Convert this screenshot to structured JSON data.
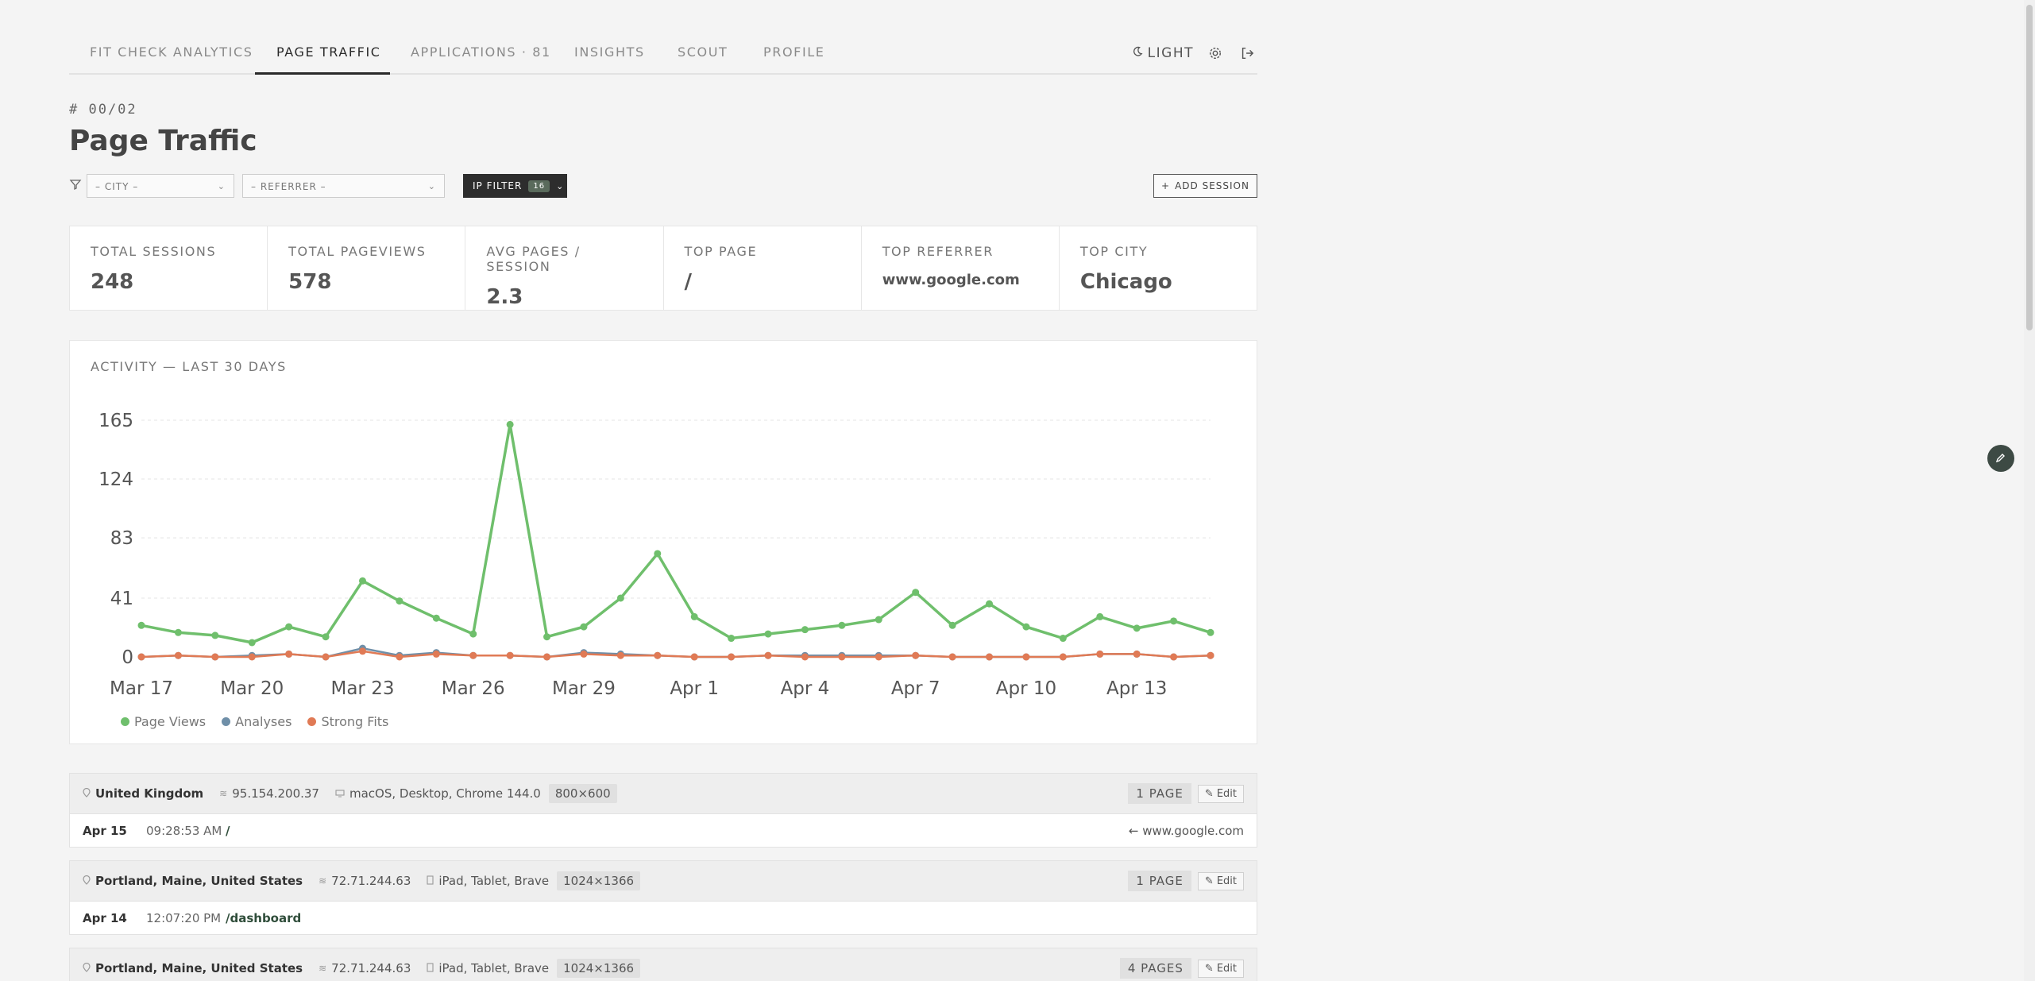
{
  "nav": {
    "tabs": [
      "FIT CHECK ANALYTICS",
      "PAGE TRAFFIC",
      "APPLICATIONS · 81",
      "INSIGHTS",
      "SCOUT",
      "PROFILE"
    ],
    "active_tab": "PAGE TRAFFIC",
    "theme_label": "LIGHT"
  },
  "page": {
    "crumb": "# 00/02",
    "title": "Page Traffic"
  },
  "filters": {
    "city_placeholder": "– CITY –",
    "referrer_placeholder": "– REFERRER –",
    "ip_filter_label": "IP FILTER",
    "ip_filter_count": "16",
    "add_session_label": "ADD SESSION"
  },
  "stats": [
    {
      "label": "TOTAL SESSIONS",
      "value": "248"
    },
    {
      "label": "TOTAL PAGEVIEWS",
      "value": "578"
    },
    {
      "label": "AVG PAGES / SESSION",
      "value": "2.3"
    },
    {
      "label": "TOP PAGE",
      "value": "/"
    },
    {
      "label": "TOP REFERRER",
      "value": "www.google.com"
    },
    {
      "label": "TOP CITY",
      "value": "Chicago"
    }
  ],
  "chart_title": "ACTIVITY — LAST 30 DAYS",
  "chart_data": {
    "type": "line",
    "title": "ACTIVITY — LAST 30 DAYS",
    "x": [
      "Mar 17",
      "Mar 18",
      "Mar 19",
      "Mar 20",
      "Mar 21",
      "Mar 22",
      "Mar 23",
      "Mar 24",
      "Mar 25",
      "Mar 26",
      "Mar 27",
      "Mar 28",
      "Mar 29",
      "Mar 30",
      "Mar 31",
      "Apr 1",
      "Apr 2",
      "Apr 3",
      "Apr 4",
      "Apr 5",
      "Apr 6",
      "Apr 7",
      "Apr 8",
      "Apr 9",
      "Apr 10",
      "Apr 11",
      "Apr 12",
      "Apr 13",
      "Apr 14",
      "Apr 15"
    ],
    "x_tick_labels": [
      "Mar 17",
      "Mar 20",
      "Mar 23",
      "Mar 26",
      "Mar 29",
      "Apr 1",
      "Apr 4",
      "Apr 7",
      "Apr 10",
      "Apr 13"
    ],
    "y_ticks": [
      0,
      41,
      83,
      124,
      165
    ],
    "ylim": [
      0,
      165
    ],
    "series": [
      {
        "name": "Page Views",
        "color": "#6fbf6c",
        "values": [
          22,
          17,
          15,
          10,
          21,
          14,
          53,
          39,
          27,
          16,
          162,
          14,
          21,
          41,
          72,
          28,
          13,
          16,
          19,
          22,
          26,
          45,
          22,
          37,
          21,
          13,
          28,
          20,
          25,
          17
        ]
      },
      {
        "name": "Analyses",
        "color": "#6f8fa8",
        "values": [
          0,
          1,
          0,
          1,
          2,
          0,
          6,
          1,
          3,
          1,
          1,
          0,
          3,
          2,
          1,
          0,
          0,
          1,
          1,
          1,
          1,
          1,
          0,
          0,
          0,
          0,
          2,
          2,
          0,
          1
        ]
      },
      {
        "name": "Strong Fits",
        "color": "#e07a55",
        "values": [
          0,
          1,
          0,
          0,
          2,
          0,
          4,
          0,
          2,
          1,
          1,
          0,
          2,
          1,
          1,
          0,
          0,
          1,
          0,
          0,
          0,
          1,
          0,
          0,
          0,
          0,
          2,
          2,
          0,
          1
        ]
      }
    ],
    "grid": true,
    "legend": "bottom-left"
  },
  "sessions": [
    {
      "location": "United Kingdom",
      "ip": "95.154.200.37",
      "device": "macOS, Desktop, Chrome 144.0",
      "resolution": "800×600",
      "pages": "1 PAGE",
      "edit_label": "Edit",
      "visits": [
        {
          "date": "Apr 15",
          "time": "09:28:53 AM",
          "path": "/",
          "referrer": "← www.google.com"
        }
      ]
    },
    {
      "location": "Portland, Maine, United States",
      "ip": "72.71.244.63",
      "device": "iPad, Tablet, Brave",
      "resolution": "1024×1366",
      "pages": "1 PAGE",
      "edit_label": "Edit",
      "visits": [
        {
          "date": "Apr 14",
          "time": "12:07:20 PM",
          "path": "/dashboard",
          "referrer": ""
        }
      ]
    },
    {
      "location": "Portland, Maine, United States",
      "ip": "72.71.244.63",
      "device": "iPad, Tablet, Brave",
      "resolution": "1024×1366",
      "pages": "4 PAGES",
      "edit_label": "Edit",
      "visits": []
    }
  ]
}
